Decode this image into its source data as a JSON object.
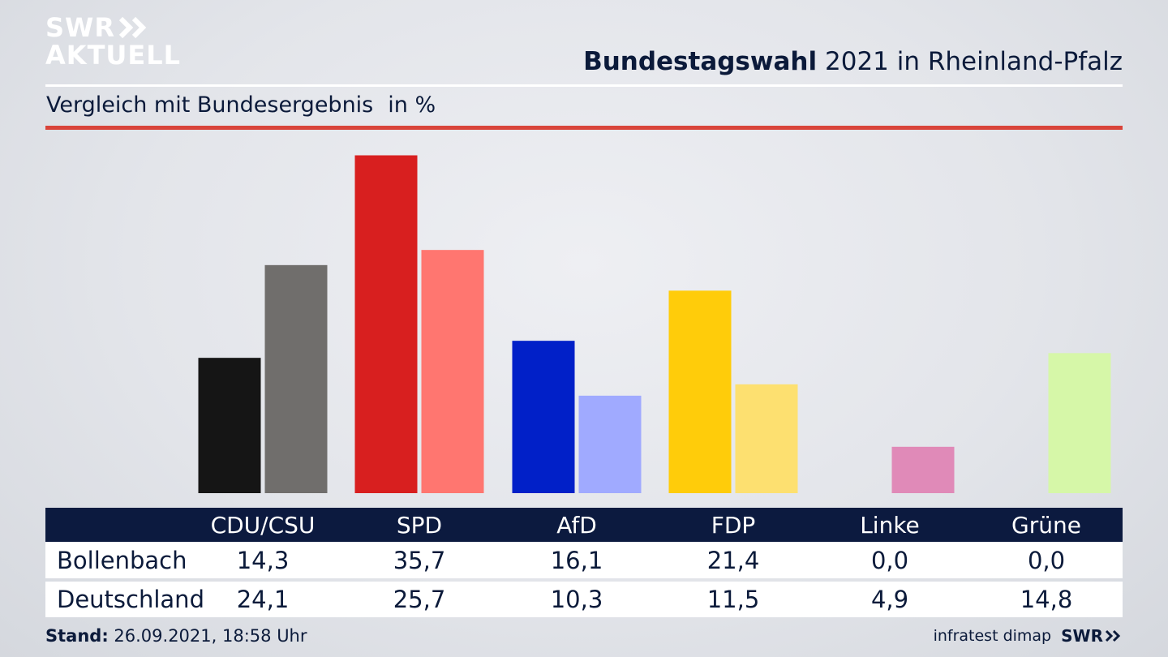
{
  "logo": {
    "line1": "SWR",
    "line2": "AKTUELL"
  },
  "header": {
    "title_bold": "Bundestagswahl",
    "title_rest": "2021 in Rheinland-Pfalz",
    "subtitle": "Vergleich mit Bundesergebnis",
    "unit": "in %"
  },
  "colors": {
    "rule_red": "#d9443a",
    "table_header": "#0c1a3f"
  },
  "chart_data": {
    "type": "bar",
    "categories": [
      "CDU/CSU",
      "SPD",
      "AfD",
      "FDP",
      "Linke",
      "Grüne"
    ],
    "series": [
      {
        "name": "Bollenbach",
        "values": [
          14.3,
          35.7,
          16.1,
          21.4,
          0.0,
          0.0
        ],
        "colors": [
          "#151515",
          "#d81f1f",
          "#0120c8",
          "#ffcc0a",
          "#c0387a",
          "#8ccc3a"
        ]
      },
      {
        "name": "Deutschland",
        "values": [
          24.1,
          25.7,
          10.3,
          11.5,
          4.9,
          14.8
        ],
        "colors": [
          "#706e6c",
          "#ff7670",
          "#a0aaff",
          "#fde070",
          "#e08ab8",
          "#d6f7a8"
        ]
      }
    ],
    "title": "Bundestagswahl 2021 in Rheinland-Pfalz",
    "subtitle": "Vergleich mit Bundesergebnis",
    "unit": "in %",
    "ylim": [
      0,
      36
    ]
  },
  "table": {
    "rows": [
      {
        "label": "Bollenbach",
        "values": [
          "14,3",
          "35,7",
          "16,1",
          "21,4",
          "0,0",
          "0,0"
        ]
      },
      {
        "label": "Deutschland",
        "values": [
          "24,1",
          "25,7",
          "10,3",
          "11,5",
          "4,9",
          "14,8"
        ]
      }
    ]
  },
  "footer": {
    "stand_label": "Stand:",
    "stand_value": "26.09.2021, 18:58 Uhr",
    "source": "infratest dimap",
    "brand": "SWR"
  }
}
